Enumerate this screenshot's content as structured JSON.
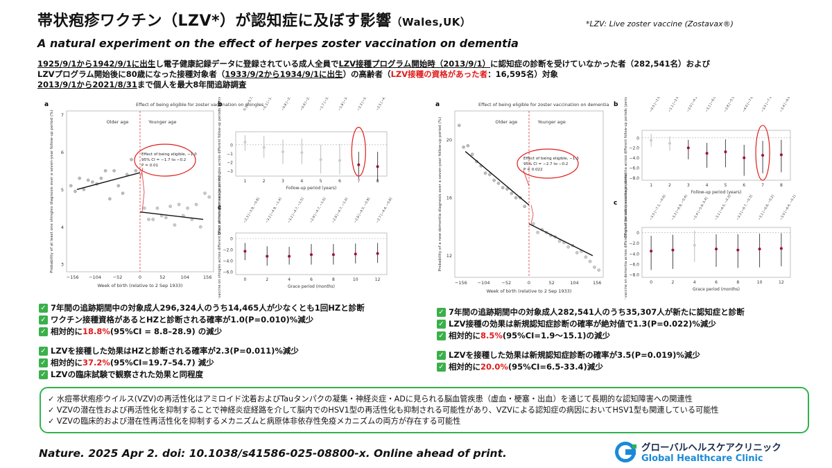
{
  "header": {
    "title": "帯状疱疹ワクチン（LZV*）が認知症に及ぼす影響",
    "title_location": "（Wales,UK）",
    "footnote": "*LZV: Live zoster vaccine (Zostavax®)",
    "subtitle": "A natural experiment on the effect of herpes zoster vaccination on dementia"
  },
  "intro": {
    "line1_a": "1925/9/1から1942/9/1に出生",
    "line1_b": "し電子健康記録データに登録されている成人全員で",
    "line1_c": "LZV接種プログラム開始時（2013/9/1）",
    "line1_d": "に認知症の診断を受けていなかった者（282,541名）および",
    "line2_a": "LZVプログラム開始後に80歳になった接種対象者（",
    "line2_b": "1933/9/2から1934/9/1に出生",
    "line2_c": "）の高齢者（",
    "line2_d": "LZV接種の資格があった者",
    "line2_e": "：16,595名）対象",
    "line3_a": "2013/9/1から2021/8/31",
    "line3_b": "まで個人を最大8年間追跡調査"
  },
  "left_figure": {
    "panel_a": {
      "label": "a",
      "title": "Effect of being eligible for zoster vaccination on shingles",
      "older_age": "Older age",
      "younger_age": "Younger age",
      "ylabel": "Probability of at least one shingles diagnosis over a seven-year follow-up period (%)",
      "xlabel": "Week of birth (relative to 2 Sep 1933)",
      "annotation": [
        "Effect of being eligible, −1.0",
        "95% CI = −1.7 to −0.2",
        "P = 0.01"
      ],
      "yticks": [
        "7",
        "6",
        "5",
        "4",
        "3"
      ],
      "xticks": [
        "−156",
        "−104",
        "−52",
        "0",
        "52",
        "104",
        "156"
      ]
    },
    "panel_b": {
      "label": "b",
      "ylabel": "Effect of the zoster vaccine on shingles across different follow-up periods (percentage points)",
      "xlabel": "Follow-up period (years)",
      "yticks": [
        "0",
        "−1",
        "−2",
        "−3"
      ],
      "xticks": [
        "1",
        "2",
        "3",
        "4",
        "5",
        "6",
        "7",
        "8"
      ],
      "ci_labels": [
        "0.3 [−0.7, 1.1]",
        "−0.3 [−1.5, 1.0]",
        "−0.8 [−2.2, 0.6]",
        "−0.9 [−2.2, 0.7]",
        "−1.7 [−3.3, −0.0]",
        "−1.8 [−3.4, 0.1]",
        "−2.3 [−3.9, −0.8]",
        "−2.5 [−4.2, −0.8]"
      ]
    },
    "panel_c": {
      "label": "c",
      "ylabel": "Effect of the zoster vaccine on shingles across different grace periods (percentage points)",
      "xlabel": "Grace period (months)",
      "yticks": [
        "0",
        "−2.0",
        "−4.0",
        "−6.0"
      ],
      "xticks": [
        "0",
        "2",
        "4",
        "6",
        "8",
        "10",
        "12"
      ],
      "ci_labels": [
        "−2.3 [−3.9, −0.8]",
        "−3.2 [−4.9, −1.4]",
        "−3.2 [−4.7, −1.5]",
        "−2.9 [−4.7, −1.0]",
        "−2.9 [−4.7, −1.0]",
        "−2.8 [−4.5, −0.9]",
        "−2.7 [−4.4, −0.8]"
      ]
    }
  },
  "right_figure": {
    "panel_a": {
      "label": "a",
      "title": "Effect of being eligible for zoster vaccination on dementia",
      "older_age": "Older age",
      "younger_age": "Younger age",
      "ylabel": "Probability of a new dementia diagnosis over a seven-year follow-up period (%)",
      "xlabel": "Week of birth (relative to 2 Sep 1933)",
      "annotation": [
        "Effect of being eligible, −1.3",
        "95% CI = −2.7 to −0.2",
        "P = 0.022"
      ],
      "yticks": [
        "20",
        "16",
        "12"
      ],
      "xticks": [
        "−156",
        "−104",
        "−52",
        "0",
        "52",
        "104",
        "156"
      ]
    },
    "panel_b": {
      "label": "b",
      "ylabel": "Effect of the zoster vaccine on dementia across different follow-up periods (percentage points)",
      "xlabel": "Follow-up period (years)",
      "yticks": [
        "0",
        "−2.0",
        "−4.0",
        "−6.0",
        "−8.0"
      ],
      "xticks": [
        "1",
        "2",
        "3",
        "4",
        "5",
        "6",
        "7",
        "8"
      ],
      "ci_labels": [
        "−0.5 [−1.8, 0.8]",
        "−1.1 [−2.6, 0.3]",
        "−2.0 [−4.3, −0.4]",
        "−3.1 [−6.0, −1.0]",
        "−2.8 [−5.9, −0.3]",
        "−4.0 [−7.6, −1.4]",
        "−3.5 [−7.1, −0.6]",
        "−3.4 [−6.9, −0.4]"
      ]
    },
    "panel_c": {
      "label": "c",
      "ylabel": "Effect of the zoster vaccine on dementia across different grace periods (percentage points)",
      "xlabel": "Grace period (months)",
      "yticks": [
        "0",
        "−2.0",
        "−4.0",
        "−6.0",
        "−8.0"
      ],
      "xticks": [
        "0",
        "2",
        "4",
        "6",
        "8",
        "10",
        "12"
      ],
      "ci_labels": [
        "−3.5 [−7.1, −0.6]",
        "−3.3 [−6.9, −0.4]",
        "−2.4 [−5.6, 0.4]",
        "−3.1 [−6.5, −0.3]",
        "−3.3 [−6.7, −0.3]",
        "−3.1 [−6.6, −0.2]",
        "−3.0 [−6.4, −0.1]"
      ]
    }
  },
  "left_bullets": {
    "b1": "7年間の追跡期間中の対象成人296,324人のうち14,465人が少なくとも1回HZと診断",
    "b2": "ワクチン接種資格があるとHZと診断される確率が1.0(P=0.010)%減少",
    "b3_pre": "相対的に",
    "b3_red": "18.8%",
    "b3_post": " (95%CI = 8.8–28.9) の減少",
    "b4": "LZVを接種した効果はHZと診断される確率が2.3(P=0.011)%減少",
    "b5_pre": "相対的に",
    "b5_red": "37.2%",
    "b5_post": " (95%CI=19.7–54.7) 減少",
    "b6": "LZVの臨床試験で観察された効果と同程度"
  },
  "right_bullets": {
    "b1": "7年間の追跡期間中の対象成人282,541人のうち35,307人が新たに認知症と診断",
    "b2": "LZV接種の効果は新規認知症診断の確率が絶対値で1.3(P=0.022)%減少",
    "b3_pre": "相対的に",
    "b3_red": "8.5%",
    "b3_post": "(95%CI=1.9～15.1)の減少",
    "b4": "LZVを接種した効果は新規認知症診断の確率が3.5(P=0.019)%減少",
    "b5_pre": "相対的に",
    "b5_red": "20.0%",
    "b5_post": "(95%CI=6.5-33.4)減少"
  },
  "summary_box": {
    "l1": "✓ 水痘帯状疱疹ウイルス(VZV)の再活性化はアミロイド沈着およびTauタンパクの凝集・神経炎症・ADに見られる脳血管疾患（虚血・梗塞・出血）を通じて長期的な認知障害への関連性",
    "l2": "✓ VZVの潜在性および再活性化を抑制することで神経炎症経路を介して脳内でのHSV1型の再活性化も抑制される可能性があり、VZVによる認知症の病因においてHSV1型も関連している可能性",
    "l3": "✓ VZVの臨床的および潜在性再活性化を抑制するメカニズムと病原体非依存性免疫メカニズムの両方が存在する可能性"
  },
  "citation": "Nature. 2025 Apr 2. doi: 10.1038/s41586-025-08800-x. Online ahead of print.",
  "logo": {
    "jp": "グローバルヘルスケアクリニック",
    "en": "Global Healthcare Clinic"
  },
  "chart_data": [
    {
      "type": "scatter",
      "title": "Effect of being eligible for zoster vaccination on shingles",
      "xlabel": "Week of birth (relative to 2 Sep 1933)",
      "ylabel": "Probability of at least one shingles diagnosis over a seven-year follow-up period (%)",
      "xlim": [
        -170,
        170
      ],
      "ylim": [
        2.8,
        7.1
      ],
      "points_x": [
        -160,
        -150,
        -140,
        -130,
        -120,
        -110,
        -100,
        -90,
        -80,
        -70,
        -60,
        -50,
        -40,
        -30,
        -20,
        -10,
        10,
        20,
        30,
        40,
        50,
        60,
        70,
        80,
        90,
        100,
        110,
        120,
        130,
        140,
        150,
        160
      ],
      "points_y": [
        5.1,
        4.95,
        5.3,
        5.0,
        5.25,
        5.2,
        5.15,
        5.3,
        5.5,
        4.75,
        5.5,
        5.1,
        4.9,
        5.4,
        5.8,
        5.5,
        4.5,
        4.2,
        4.2,
        4.5,
        4.3,
        4.25,
        4.55,
        4.05,
        4.6,
        4.3,
        4.5,
        4.2,
        4.6,
        4.0,
        4.9,
        4.8
      ],
      "fit_left": [
        [
          -146,
          5.0
        ],
        [
          0,
          5.45
        ]
      ],
      "fit_right": [
        [
          0,
          4.4
        ],
        [
          146,
          4.2
        ]
      ]
    },
    {
      "type": "scatter",
      "title": "Effect of being eligible for zoster vaccination on dementia",
      "xlabel": "Week of birth (relative to 2 Sep 1933)",
      "ylabel": "Probability of a new dementia diagnosis over a seven-year follow-up period (%)",
      "xlim": [
        -170,
        170
      ],
      "ylim": [
        10.5,
        22
      ],
      "points_x": [
        -160,
        -150,
        -140,
        -130,
        -120,
        -110,
        -100,
        -90,
        -80,
        -70,
        -60,
        -50,
        -40,
        -30,
        -20,
        -10,
        10,
        20,
        30,
        40,
        50,
        60,
        70,
        80,
        90,
        100,
        110,
        120,
        130,
        140,
        150,
        160
      ],
      "points_y": [
        21.0,
        19.5,
        19.6,
        19.0,
        18.5,
        18.2,
        17.7,
        17.6,
        17.2,
        17.0,
        16.7,
        16.6,
        16.3,
        16.0,
        16.0,
        15.4,
        14.2,
        13.6,
        13.8,
        13.6,
        13.4,
        13.3,
        13.0,
        12.9,
        12.6,
        12.7,
        12.2,
        12.3,
        11.9,
        11.6,
        11.2,
        11.0
      ],
      "fit_left": [
        [
          -146,
          19.2
        ],
        [
          0,
          15.5
        ]
      ],
      "fit_right": [
        [
          0,
          14.2
        ],
        [
          146,
          12.0
        ]
      ]
    },
    {
      "type": "scatter",
      "title": "",
      "xlabel": "Follow-up period (years)",
      "ylabel": "Effect of the zoster vaccine on shingles across different follow-up periods (percentage points)",
      "x": [
        1,
        2,
        3,
        4,
        5,
        6,
        7,
        8
      ],
      "values": [
        0.3,
        -0.3,
        -0.8,
        -0.9,
        -1.7,
        -1.8,
        -2.3,
        -2.5
      ],
      "ci_low": [
        -0.7,
        -1.5,
        -2.2,
        -2.2,
        -3.3,
        -3.4,
        -3.9,
        -4.2
      ],
      "ci_high": [
        1.1,
        1.0,
        0.6,
        0.7,
        -0.0,
        0.1,
        -0.8,
        -0.8
      ],
      "ylim": [
        -3.6,
        1.5
      ]
    },
    {
      "type": "scatter",
      "title": "",
      "xlabel": "Grace period (months)",
      "ylabel": "Effect of the zoster vaccine on shingles across different grace periods (percentage points)",
      "x": [
        0,
        2,
        4,
        6,
        8,
        10,
        12
      ],
      "values": [
        -2.3,
        -3.2,
        -3.2,
        -2.9,
        -2.9,
        -2.8,
        -2.7
      ],
      "ci_low": [
        -3.9,
        -4.9,
        -4.7,
        -4.7,
        -4.7,
        -4.5,
        -4.4
      ],
      "ci_high": [
        -0.8,
        -1.4,
        -1.5,
        -1.0,
        -1.0,
        -0.9,
        -0.8
      ],
      "ylim": [
        -6.5,
        1.0
      ]
    },
    {
      "type": "scatter",
      "title": "",
      "xlabel": "Follow-up period (years)",
      "ylabel": "Effect of the zoster vaccine on dementia across different follow-up periods (percentage points)",
      "x": [
        1,
        2,
        3,
        4,
        5,
        6,
        7,
        8
      ],
      "values": [
        -0.5,
        -1.1,
        -2.0,
        -3.1,
        -2.8,
        -4.0,
        -3.5,
        -3.4
      ],
      "ci_low": [
        -1.8,
        -2.6,
        -4.3,
        -6.0,
        -5.9,
        -7.6,
        -7.1,
        -6.9
      ],
      "ci_high": [
        0.8,
        0.3,
        -0.4,
        -1.0,
        -0.3,
        -1.4,
        -0.6,
        -0.4
      ],
      "ylim": [
        -8.5,
        1.5
      ]
    },
    {
      "type": "scatter",
      "title": "",
      "xlabel": "Grace period (months)",
      "ylabel": "Effect of the zoster vaccine on dementia across different grace periods (percentage points)",
      "x": [
        0,
        2,
        4,
        6,
        8,
        10,
        12
      ],
      "values": [
        -3.5,
        -3.3,
        -2.4,
        -3.1,
        -3.3,
        -3.1,
        -3.0
      ],
      "ci_low": [
        -7.1,
        -6.9,
        -5.6,
        -6.5,
        -6.7,
        -6.6,
        -6.4
      ],
      "ci_high": [
        -0.6,
        -0.4,
        0.4,
        -0.3,
        -0.3,
        -0.2,
        -0.1
      ],
      "ylim": [
        -8.5,
        1.0
      ]
    }
  ]
}
